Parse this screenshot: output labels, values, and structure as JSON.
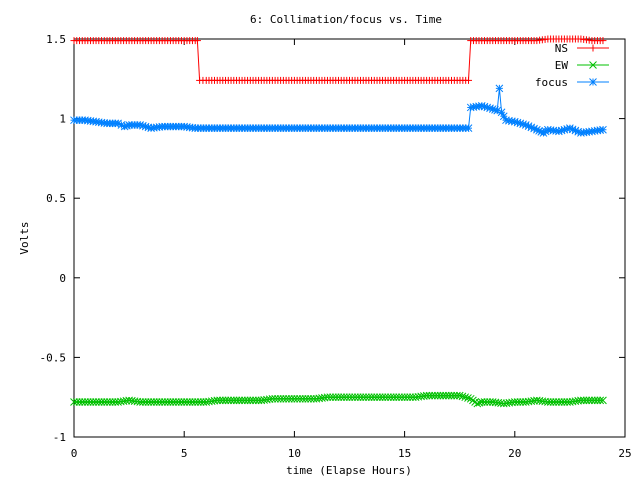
{
  "chart_data": {
    "type": "line",
    "title": "6: Collimation/focus vs. Time",
    "xlabel": "time (Elapse Hours)",
    "ylabel": "Volts",
    "xlim": [
      0,
      25
    ],
    "ylim": [
      -1,
      1.5
    ],
    "xticks": [
      "0",
      "5",
      "10",
      "15",
      "20",
      "25"
    ],
    "yticks": [
      "-1",
      "-0.5",
      "0",
      "0.5",
      "1",
      "1.5"
    ],
    "grid": false,
    "legend_position": "top-right",
    "series": [
      {
        "name": "NS",
        "color": "#ff0000",
        "marker": "plus",
        "points": [
          [
            0.0,
            1.49
          ],
          [
            0.5,
            1.49
          ],
          [
            1.0,
            1.49
          ],
          [
            1.5,
            1.49
          ],
          [
            2.0,
            1.49
          ],
          [
            2.5,
            1.49
          ],
          [
            3.0,
            1.49
          ],
          [
            3.5,
            1.49
          ],
          [
            4.0,
            1.49
          ],
          [
            4.5,
            1.49
          ],
          [
            5.0,
            1.49
          ],
          [
            5.5,
            1.49
          ],
          [
            5.6,
            1.49
          ],
          [
            5.7,
            1.24
          ],
          [
            6.0,
            1.24
          ],
          [
            7.0,
            1.24
          ],
          [
            8.0,
            1.24
          ],
          [
            9.0,
            1.24
          ],
          [
            10.0,
            1.24
          ],
          [
            11.0,
            1.24
          ],
          [
            12.0,
            1.24
          ],
          [
            13.0,
            1.24
          ],
          [
            14.0,
            1.24
          ],
          [
            15.0,
            1.24
          ],
          [
            16.0,
            1.24
          ],
          [
            17.0,
            1.24
          ],
          [
            17.9,
            1.24
          ],
          [
            18.0,
            1.49
          ],
          [
            18.5,
            1.49
          ],
          [
            19.0,
            1.49
          ],
          [
            19.5,
            1.49
          ],
          [
            20.0,
            1.49
          ],
          [
            20.5,
            1.49
          ],
          [
            21.0,
            1.49
          ],
          [
            21.5,
            1.5
          ],
          [
            22.0,
            1.5
          ],
          [
            22.5,
            1.5
          ],
          [
            23.0,
            1.5
          ],
          [
            23.5,
            1.49
          ],
          [
            24.0,
            1.49
          ]
        ]
      },
      {
        "name": "EW",
        "color": "#00c000",
        "marker": "x",
        "points": [
          [
            0.0,
            -0.78
          ],
          [
            0.5,
            -0.78
          ],
          [
            1.0,
            -0.78
          ],
          [
            1.5,
            -0.78
          ],
          [
            2.0,
            -0.78
          ],
          [
            2.5,
            -0.77
          ],
          [
            3.0,
            -0.78
          ],
          [
            3.5,
            -0.78
          ],
          [
            4.0,
            -0.78
          ],
          [
            4.5,
            -0.78
          ],
          [
            5.0,
            -0.78
          ],
          [
            5.5,
            -0.78
          ],
          [
            6.0,
            -0.78
          ],
          [
            6.5,
            -0.77
          ],
          [
            7.0,
            -0.77
          ],
          [
            7.5,
            -0.77
          ],
          [
            8.0,
            -0.77
          ],
          [
            8.5,
            -0.77
          ],
          [
            9.0,
            -0.76
          ],
          [
            9.5,
            -0.76
          ],
          [
            10.0,
            -0.76
          ],
          [
            10.5,
            -0.76
          ],
          [
            11.0,
            -0.76
          ],
          [
            11.5,
            -0.75
          ],
          [
            12.0,
            -0.75
          ],
          [
            12.5,
            -0.75
          ],
          [
            13.0,
            -0.75
          ],
          [
            13.5,
            -0.75
          ],
          [
            14.0,
            -0.75
          ],
          [
            14.5,
            -0.75
          ],
          [
            15.0,
            -0.75
          ],
          [
            15.5,
            -0.75
          ],
          [
            16.0,
            -0.74
          ],
          [
            16.5,
            -0.74
          ],
          [
            17.0,
            -0.74
          ],
          [
            17.5,
            -0.74
          ],
          [
            18.0,
            -0.76
          ],
          [
            18.3,
            -0.79
          ],
          [
            18.5,
            -0.78
          ],
          [
            19.0,
            -0.78
          ],
          [
            19.5,
            -0.79
          ],
          [
            20.0,
            -0.78
          ],
          [
            20.5,
            -0.78
          ],
          [
            21.0,
            -0.77
          ],
          [
            21.5,
            -0.78
          ],
          [
            22.0,
            -0.78
          ],
          [
            22.5,
            -0.78
          ],
          [
            23.0,
            -0.77
          ],
          [
            23.5,
            -0.77
          ],
          [
            24.0,
            -0.77
          ]
        ]
      },
      {
        "name": "focus",
        "color": "#0080ff",
        "marker": "star",
        "points": [
          [
            0.0,
            0.99
          ],
          [
            0.5,
            0.99
          ],
          [
            1.0,
            0.98
          ],
          [
            1.5,
            0.97
          ],
          [
            2.0,
            0.97
          ],
          [
            2.3,
            0.95
          ],
          [
            2.5,
            0.96
          ],
          [
            3.0,
            0.96
          ],
          [
            3.5,
            0.94
          ],
          [
            4.0,
            0.95
          ],
          [
            4.5,
            0.95
          ],
          [
            5.0,
            0.95
          ],
          [
            5.5,
            0.94
          ],
          [
            6.0,
            0.94
          ],
          [
            7.0,
            0.94
          ],
          [
            8.0,
            0.94
          ],
          [
            9.0,
            0.94
          ],
          [
            10.0,
            0.94
          ],
          [
            11.0,
            0.94
          ],
          [
            12.0,
            0.94
          ],
          [
            13.0,
            0.94
          ],
          [
            14.0,
            0.94
          ],
          [
            15.0,
            0.94
          ],
          [
            16.0,
            0.94
          ],
          [
            17.0,
            0.94
          ],
          [
            17.9,
            0.94
          ],
          [
            18.0,
            1.07
          ],
          [
            18.5,
            1.08
          ],
          [
            19.0,
            1.06
          ],
          [
            19.2,
            1.05
          ],
          [
            19.3,
            1.19
          ],
          [
            19.4,
            1.04
          ],
          [
            19.6,
            0.99
          ],
          [
            20.0,
            0.98
          ],
          [
            20.5,
            0.96
          ],
          [
            21.0,
            0.93
          ],
          [
            21.3,
            0.91
          ],
          [
            21.5,
            0.93
          ],
          [
            22.0,
            0.92
          ],
          [
            22.5,
            0.94
          ],
          [
            23.0,
            0.91
          ],
          [
            23.5,
            0.92
          ],
          [
            24.0,
            0.93
          ]
        ]
      }
    ]
  }
}
